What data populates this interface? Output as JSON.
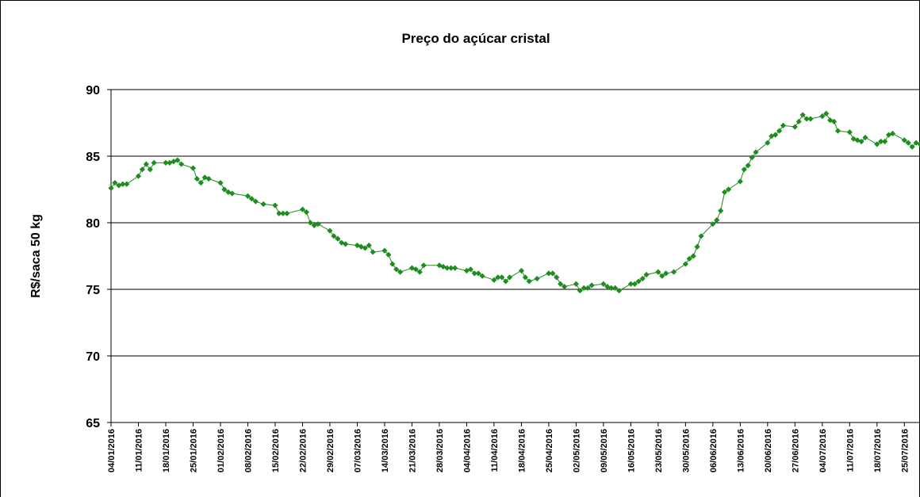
{
  "chart_data": {
    "type": "line",
    "title": "Preço do açúcar cristal",
    "y_label": "R$/saca 50 kg",
    "color": "#1e8c1e",
    "grid": true,
    "ylim": [
      65,
      90
    ],
    "yticks": [
      65,
      70,
      75,
      80,
      85,
      90
    ],
    "xlim": [
      "04/01/2016",
      "29/07/2016"
    ],
    "xticks": [
      "04/01/2016",
      "11/01/2016",
      "18/01/2016",
      "25/01/2016",
      "01/02/2016",
      "08/02/2016",
      "15/02/2016",
      "22/02/2016",
      "29/02/2016",
      "07/03/2016",
      "14/03/2016",
      "21/03/2016",
      "28/03/2016",
      "04/04/2016",
      "11/04/2016",
      "18/04/2016",
      "25/04/2016",
      "02/05/2016",
      "09/05/2016",
      "16/05/2016",
      "23/05/2016",
      "30/05/2016",
      "06/06/2016",
      "13/06/2016",
      "20/06/2016",
      "27/06/2016",
      "04/07/2016",
      "11/07/2016",
      "18/07/2016",
      "25/07/2016"
    ],
    "x": [
      "04/01/2016",
      "05/01/2016",
      "06/01/2016",
      "07/01/2016",
      "08/01/2016",
      "11/01/2016",
      "12/01/2016",
      "13/01/2016",
      "14/01/2016",
      "15/01/2016",
      "18/01/2016",
      "19/01/2016",
      "20/01/2016",
      "21/01/2016",
      "22/01/2016",
      "25/01/2016",
      "26/01/2016",
      "27/01/2016",
      "28/01/2016",
      "29/01/2016",
      "01/02/2016",
      "02/02/2016",
      "03/02/2016",
      "04/02/2016",
      "08/02/2016",
      "09/02/2016",
      "10/02/2016",
      "12/02/2016",
      "15/02/2016",
      "16/02/2016",
      "17/02/2016",
      "18/02/2016",
      "22/02/2016",
      "23/02/2016",
      "24/02/2016",
      "25/02/2016",
      "26/02/2016",
      "29/02/2016",
      "01/03/2016",
      "02/03/2016",
      "03/03/2016",
      "04/03/2016",
      "07/03/2016",
      "08/03/2016",
      "09/03/2016",
      "10/03/2016",
      "11/03/2016",
      "14/03/2016",
      "15/03/2016",
      "16/03/2016",
      "17/03/2016",
      "18/03/2016",
      "21/03/2016",
      "22/03/2016",
      "23/03/2016",
      "24/03/2016",
      "28/03/2016",
      "29/03/2016",
      "30/03/2016",
      "31/03/2016",
      "01/04/2016",
      "04/04/2016",
      "05/04/2016",
      "06/04/2016",
      "07/04/2016",
      "08/04/2016",
      "11/04/2016",
      "12/04/2016",
      "13/04/2016",
      "14/04/2016",
      "15/04/2016",
      "18/04/2016",
      "19/04/2016",
      "20/04/2016",
      "22/04/2016",
      "25/04/2016",
      "26/04/2016",
      "27/04/2016",
      "28/04/2016",
      "29/04/2016",
      "02/05/2016",
      "03/05/2016",
      "04/05/2016",
      "05/05/2016",
      "06/05/2016",
      "09/05/2016",
      "10/05/2016",
      "11/05/2016",
      "12/05/2016",
      "13/05/2016",
      "16/05/2016",
      "17/05/2016",
      "18/05/2016",
      "19/05/2016",
      "20/05/2016",
      "23/05/2016",
      "24/05/2016",
      "25/05/2016",
      "27/05/2016",
      "30/05/2016",
      "31/05/2016",
      "01/06/2016",
      "02/06/2016",
      "03/06/2016",
      "06/06/2016",
      "07/06/2016",
      "08/06/2016",
      "09/06/2016",
      "10/06/2016",
      "13/06/2016",
      "14/06/2016",
      "15/06/2016",
      "16/06/2016",
      "17/06/2016",
      "20/06/2016",
      "21/06/2016",
      "22/06/2016",
      "23/06/2016",
      "24/06/2016",
      "27/06/2016",
      "28/06/2016",
      "29/06/2016",
      "30/06/2016",
      "01/07/2016",
      "04/07/2016",
      "05/07/2016",
      "06/07/2016",
      "07/07/2016",
      "08/07/2016",
      "11/07/2016",
      "12/07/2016",
      "13/07/2016",
      "14/07/2016",
      "15/07/2016",
      "18/07/2016",
      "19/07/2016",
      "20/07/2016",
      "21/07/2016",
      "22/07/2016",
      "25/07/2016",
      "26/07/2016",
      "27/07/2016",
      "28/07/2016",
      "29/07/2016"
    ],
    "values": [
      82.6,
      83.0,
      82.8,
      82.9,
      82.9,
      83.5,
      84.0,
      84.4,
      84.0,
      84.5,
      84.5,
      84.5,
      84.6,
      84.7,
      84.4,
      84.1,
      83.3,
      83.0,
      83.4,
      83.3,
      83.0,
      82.5,
      82.3,
      82.2,
      82.0,
      81.8,
      81.6,
      81.4,
      81.3,
      80.7,
      80.7,
      80.7,
      81.0,
      80.8,
      80.0,
      79.8,
      79.9,
      79.4,
      79.0,
      78.8,
      78.5,
      78.4,
      78.3,
      78.2,
      78.1,
      78.3,
      77.8,
      77.9,
      77.6,
      76.9,
      76.5,
      76.3,
      76.6,
      76.5,
      76.3,
      76.8,
      76.8,
      76.7,
      76.6,
      76.6,
      76.6,
      76.4,
      76.5,
      76.2,
      76.2,
      76.0,
      75.7,
      75.9,
      75.9,
      75.6,
      75.9,
      76.4,
      75.9,
      75.6,
      75.8,
      76.2,
      76.2,
      75.9,
      75.4,
      75.2,
      75.4,
      74.9,
      75.1,
      75.1,
      75.3,
      75.4,
      75.2,
      75.1,
      75.1,
      74.9,
      75.4,
      75.4,
      75.6,
      75.8,
      76.1,
      76.3,
      76.0,
      76.2,
      76.3,
      76.9,
      77.3,
      77.5,
      78.2,
      79.0,
      79.9,
      80.2,
      80.9,
      82.3,
      82.5,
      83.1,
      84.0,
      84.3,
      84.9,
      85.3,
      86.0,
      86.5,
      86.6,
      86.9,
      87.3,
      87.2,
      87.6,
      88.1,
      87.8,
      87.8,
      88.0,
      88.2,
      87.7,
      87.6,
      86.9,
      86.8,
      86.3,
      86.2,
      86.1,
      86.4,
      85.9,
      86.1,
      86.1,
      86.6,
      86.7,
      86.2,
      86.0,
      85.7,
      86.0,
      85.9
    ]
  }
}
